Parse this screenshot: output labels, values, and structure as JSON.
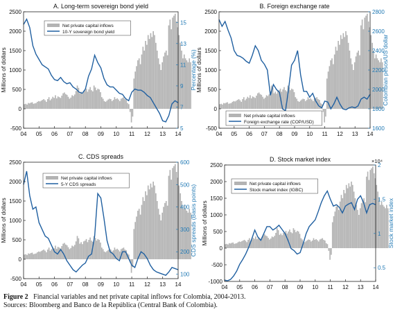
{
  "chart_data": [
    {
      "type": "bar+line",
      "title": "A. Long-term sovereign bond yield",
      "ylabel_left": "Millions of dollars",
      "ylabel_right": "Percentage (%)",
      "left_ticks": [
        -500,
        0,
        500,
        1000,
        1500,
        2000,
        2500
      ],
      "right_ticks": [
        5,
        7,
        9,
        11,
        13,
        15
      ],
      "x_ticks": [
        "04",
        "05",
        "06",
        "07",
        "08",
        "09",
        "10",
        "11",
        "12",
        "13",
        "14"
      ],
      "legend": [
        "Net private capital inflows",
        "10-Y sovereign bond yield"
      ],
      "legend_position": "top-left",
      "line_color": "#1f5fa0",
      "right_axis_color": "#1f78b4",
      "line_series": {
        "name": "10-Y sovereign bond yield",
        "x": [
          2004.0,
          2004.2,
          2004.4,
          2004.6,
          2004.8,
          2005.0,
          2005.2,
          2005.4,
          2005.6,
          2005.8,
          2006.0,
          2006.2,
          2006.4,
          2006.6,
          2006.8,
          2007.0,
          2007.2,
          2007.4,
          2007.6,
          2007.8,
          2008.0,
          2008.2,
          2008.4,
          2008.6,
          2008.8,
          2009.0,
          2009.2,
          2009.4,
          2009.6,
          2009.8,
          2010.0,
          2010.2,
          2010.4,
          2010.6,
          2010.8,
          2011.0,
          2011.2,
          2011.4,
          2011.6,
          2011.8,
          2012.0,
          2012.2,
          2012.4,
          2012.6,
          2012.8,
          2013.0,
          2013.2,
          2013.4,
          2013.6,
          2013.8,
          2014.0
        ],
        "y": [
          14.8,
          15.3,
          14.5,
          12.8,
          12.0,
          11.5,
          11.0,
          10.8,
          10.6,
          10.0,
          9.6,
          9.5,
          9.8,
          9.4,
          9.2,
          9.3,
          8.9,
          8.7,
          8.4,
          8.3,
          8.7,
          9.9,
          10.6,
          11.9,
          11.2,
          10.7,
          9.7,
          9.1,
          8.9,
          8.9,
          8.6,
          8.3,
          8.2,
          7.8,
          7.6,
          8.4,
          8.7,
          8.6,
          8.6,
          8.4,
          8.1,
          7.9,
          7.4,
          6.9,
          6.4,
          5.7,
          5.6,
          6.2,
          7.3,
          7.6,
          7.4
        ]
      }
    },
    {
      "type": "bar+line",
      "title": "B. Foreign exchange rate",
      "ylabel_left": "Millions of dollars",
      "ylabel_right": "Colombian pesos/US dollar",
      "left_ticks": [
        -500,
        0,
        500,
        1000,
        1500,
        2000,
        2500
      ],
      "right_ticks": [
        1600,
        1800,
        2000,
        2200,
        2400,
        2600,
        2800
      ],
      "x_ticks": [
        "04",
        "05",
        "06",
        "07",
        "08",
        "09",
        "10",
        "11",
        "12",
        "13",
        "14"
      ],
      "legend": [
        "Net private capital inflows",
        "Foreign exchange rate (COP/USD)"
      ],
      "legend_position": "bottom-left",
      "line_color": "#1f5fa0",
      "right_axis_color": "#1f78b4",
      "line_series": {
        "name": "Foreign exchange rate (COP/USD)",
        "x": [
          2004.0,
          2004.2,
          2004.4,
          2004.6,
          2004.8,
          2005.0,
          2005.2,
          2005.4,
          2005.6,
          2005.8,
          2006.0,
          2006.2,
          2006.4,
          2006.6,
          2006.8,
          2007.0,
          2007.2,
          2007.4,
          2007.6,
          2007.8,
          2008.0,
          2008.2,
          2008.4,
          2008.6,
          2008.8,
          2009.0,
          2009.2,
          2009.4,
          2009.6,
          2009.8,
          2010.0,
          2010.2,
          2010.4,
          2010.6,
          2010.8,
          2011.0,
          2011.2,
          2011.4,
          2011.6,
          2011.8,
          2012.0,
          2012.2,
          2012.4,
          2012.6,
          2012.8,
          2013.0,
          2013.2,
          2013.4,
          2013.6,
          2013.8,
          2014.0
        ],
        "y": [
          2720,
          2650,
          2700,
          2610,
          2530,
          2400,
          2350,
          2340,
          2320,
          2290,
          2270,
          2350,
          2450,
          2400,
          2300,
          2260,
          2200,
          1940,
          2050,
          2000,
          1970,
          1800,
          1780,
          2000,
          2250,
          2300,
          2400,
          2150,
          1980,
          1980,
          1920,
          1960,
          1880,
          1830,
          1810,
          1880,
          1870,
          1800,
          1850,
          1920,
          1850,
          1800,
          1790,
          1810,
          1820,
          1810,
          1830,
          1900,
          1920,
          1900,
          1950
        ]
      }
    },
    {
      "type": "bar+line",
      "title": "C. CDS spreads",
      "ylabel_left": "Millions of dollars",
      "ylabel_right": "CDS spreads (Basis points)",
      "left_ticks": [
        -500,
        0,
        500,
        1000,
        1500,
        2000,
        2500
      ],
      "right_ticks": [
        100,
        200,
        300,
        400,
        500,
        600
      ],
      "x_ticks": [
        "04",
        "05",
        "06",
        "07",
        "08",
        "09",
        "10",
        "11",
        "12",
        "13",
        "14"
      ],
      "legend": [
        "Net private capital inflows",
        "5-Y CDS spreads"
      ],
      "legend_position": "top-center",
      "line_color": "#1f5fa0",
      "right_axis_color": "#1f78b4",
      "line_series": {
        "name": "5-Y CDS spreads",
        "x": [
          2004.0,
          2004.2,
          2004.4,
          2004.6,
          2004.8,
          2005.0,
          2005.2,
          2005.4,
          2005.6,
          2005.8,
          2006.0,
          2006.2,
          2006.4,
          2006.6,
          2006.8,
          2007.0,
          2007.2,
          2007.4,
          2007.6,
          2007.8,
          2008.0,
          2008.2,
          2008.4,
          2008.6,
          2008.8,
          2009.0,
          2009.2,
          2009.4,
          2009.6,
          2009.8,
          2010.0,
          2010.2,
          2010.4,
          2010.6,
          2010.8,
          2011.0,
          2011.2,
          2011.4,
          2011.6,
          2011.8,
          2012.0,
          2012.2,
          2012.4,
          2012.6,
          2012.8,
          2013.0,
          2013.2,
          2013.4,
          2013.6,
          2013.8,
          2014.0
        ],
        "y": [
          500,
          560,
          450,
          390,
          400,
          330,
          300,
          270,
          260,
          230,
          200,
          190,
          210,
          190,
          160,
          140,
          120,
          110,
          125,
          140,
          150,
          180,
          190,
          270,
          460,
          440,
          350,
          250,
          200,
          190,
          170,
          160,
          200,
          200,
          170,
          140,
          130,
          170,
          200,
          190,
          170,
          140,
          120,
          110,
          105,
          100,
          95,
          110,
          130,
          125,
          120
        ]
      }
    },
    {
      "type": "bar+line",
      "title": "D. Stock market index",
      "ylabel_left": "Millions of dollars",
      "ylabel_right": "Stock market index",
      "exponent_label": "×10⁴",
      "left_ticks": [
        -1000,
        -500,
        0,
        500,
        1000,
        1500,
        2000,
        2500
      ],
      "right_ticks": [
        0.5,
        1,
        1.5,
        2
      ],
      "x_ticks": [
        "04",
        "05",
        "06",
        "07",
        "08",
        "09",
        "10",
        "11",
        "12",
        "13",
        "14"
      ],
      "legend": [
        "Net private capital inflows",
        "Stock market index (IGBC)"
      ],
      "legend_position": "top-left",
      "line_color": "#1f5fa0",
      "right_axis_color": "#1f78b4",
      "line_series": {
        "name": "Stock market index (IGBC)",
        "x": [
          2004.0,
          2004.2,
          2004.4,
          2004.6,
          2004.8,
          2005.0,
          2005.2,
          2005.4,
          2005.6,
          2005.8,
          2006.0,
          2006.2,
          2006.4,
          2006.6,
          2006.8,
          2007.0,
          2007.2,
          2007.4,
          2007.6,
          2007.8,
          2008.0,
          2008.2,
          2008.4,
          2008.6,
          2008.8,
          2009.0,
          2009.2,
          2009.4,
          2009.6,
          2009.8,
          2010.0,
          2010.2,
          2010.4,
          2010.6,
          2010.8,
          2011.0,
          2011.2,
          2011.4,
          2011.6,
          2011.8,
          2012.0,
          2012.2,
          2012.4,
          2012.6,
          2012.8,
          2013.0,
          2013.2,
          2013.4,
          2013.6,
          2013.8,
          2014.0
        ],
        "y": [
          0.32,
          0.31,
          0.33,
          0.38,
          0.45,
          0.55,
          0.62,
          0.7,
          0.8,
          0.92,
          1.05,
          0.95,
          0.9,
          1.0,
          1.1,
          1.1,
          1.05,
          1.08,
          1.12,
          1.06,
          1.0,
          0.9,
          0.78,
          0.75,
          0.7,
          0.72,
          0.85,
          1.0,
          1.1,
          1.15,
          1.2,
          1.32,
          1.45,
          1.55,
          1.62,
          1.5,
          1.4,
          1.42,
          1.38,
          1.3,
          1.4,
          1.43,
          1.45,
          1.35,
          1.5,
          1.55,
          1.45,
          1.3,
          1.42,
          1.44,
          1.42
        ]
      }
    }
  ],
  "bars_shared": {
    "name": "Net private capital inflows",
    "bar_color": "#b3b3b3",
    "x_start": 2004.0,
    "step": 0.083333,
    "values": [
      120,
      130,
      110,
      150,
      140,
      160,
      170,
      130,
      140,
      150,
      180,
      200,
      190,
      210,
      230,
      250,
      220,
      180,
      250,
      300,
      220,
      260,
      310,
      280,
      350,
      270,
      320,
      300,
      280,
      340,
      400,
      420,
      380,
      360,
      310,
      260,
      290,
      350,
      330,
      370,
      460,
      600,
      540,
      400,
      440,
      390,
      460,
      480,
      520,
      440,
      500,
      560,
      480,
      450,
      600,
      550,
      480,
      520,
      500,
      430,
      300,
      260,
      200,
      180,
      210,
      240,
      260,
      250,
      200,
      230,
      300,
      250,
      270,
      240,
      200,
      260,
      280,
      300,
      250,
      230,
      150,
      120,
      -80,
      -350,
      -200,
      780,
      960,
      1100,
      1250,
      1300,
      1150,
      1400,
      1600,
      1500,
      1750,
      1650,
      1900,
      1800,
      1950,
      1850,
      2000,
      1900,
      1700,
      1500,
      1300,
      1150,
      1000,
      1200,
      1350,
      1450,
      1500,
      1380,
      2150,
      2300,
      2050,
      2350,
      2400,
      2450,
      2250,
      2100,
      1900,
      1700,
      1500,
      1300,
      1400,
      1300,
      1250,
      1200,
      1300,
      1200
    ]
  },
  "caption": {
    "label": "Figure 2",
    "text": "Financial variables and net private capital inflows for Colombia, 2004-2013.",
    "sources": "Sources: Bloomberg and Banco de la República (Central Bank of Colombia)."
  }
}
